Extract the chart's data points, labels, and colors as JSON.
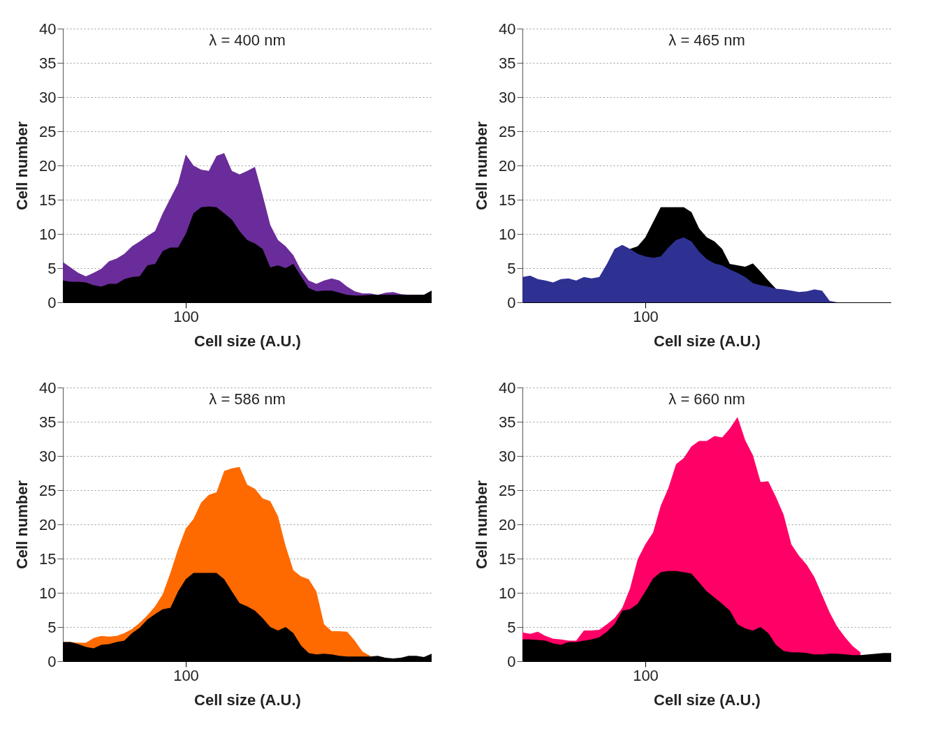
{
  "chart_data": [
    {
      "type": "area",
      "title": "λ = 400 nm",
      "xlabel": "Cell size (A.U.)",
      "ylabel": "Cell number",
      "categories": [
        null,
        null,
        null,
        null,
        null,
        null,
        null,
        null,
        null,
        null,
        null,
        null,
        null,
        null,
        null,
        null,
        "100",
        null,
        null,
        null,
        null,
        null,
        null,
        null,
        null,
        null,
        null,
        null,
        null,
        null,
        null,
        null,
        null,
        null,
        null,
        null,
        null,
        null,
        null,
        null,
        null,
        null,
        null,
        null,
        null,
        null,
        null,
        null,
        null
      ],
      "ylim": [
        0,
        40
      ],
      "yticks": [
        0,
        5,
        10,
        15,
        20,
        25,
        30,
        35,
        40
      ],
      "grid": "y",
      "series": [
        {
          "color": "#6a2c9a",
          "values": [
            5.9,
            5.1,
            4.3,
            3.8,
            4.3,
            4.9,
            6.0,
            6.4,
            7.1,
            8.2,
            8.9,
            9.7,
            10.4,
            13.0,
            15.2,
            17.4,
            21.6,
            20.0,
            19.4,
            19.2,
            21.4,
            21.8,
            19.2,
            18.7,
            19.2,
            19.8,
            15.7,
            11.3,
            9.1,
            8.2,
            6.9,
            4.7,
            3.2,
            2.7,
            3.2,
            3.5,
            3.2,
            2.3,
            1.6,
            1.3,
            1.3,
            1.1,
            1.4,
            1.5,
            1.2,
            1.1,
            1.1,
            1.1,
            1.7
          ]
        },
        {
          "color": "#000000",
          "values": [
            3.2,
            3.0,
            3.0,
            2.9,
            2.5,
            2.3,
            2.7,
            2.7,
            3.4,
            3.7,
            3.8,
            5.4,
            5.6,
            7.5,
            8.0,
            8.0,
            10.0,
            13.0,
            13.9,
            14.0,
            13.9,
            13.0,
            12.1,
            10.4,
            9.1,
            8.6,
            7.8,
            5.1,
            5.4,
            5.0,
            5.6,
            3.8,
            2.1,
            1.6,
            1.7,
            1.7,
            1.4,
            1.1,
            1.0,
            1.0,
            1.1,
            1.1,
            1.1,
            1.1,
            1.1,
            1.1,
            1.1,
            1.1,
            1.7
          ]
        }
      ]
    },
    {
      "type": "area",
      "title": "λ = 465 nm",
      "xlabel": "Cell size (A.U.)",
      "ylabel": "Cell number",
      "categories": [
        null,
        null,
        null,
        null,
        null,
        null,
        null,
        null,
        null,
        null,
        null,
        null,
        null,
        null,
        null,
        null,
        "100",
        null,
        null,
        null,
        null,
        null,
        null,
        null,
        null,
        null,
        null,
        null,
        null,
        null,
        null,
        null,
        null,
        null,
        null,
        null,
        null,
        null,
        null,
        null,
        null,
        null,
        null,
        null,
        null,
        null,
        null,
        null,
        null
      ],
      "ylim": [
        0,
        40
      ],
      "yticks": [
        0,
        5,
        10,
        15,
        20,
        25,
        30,
        35,
        40
      ],
      "grid": "y",
      "series": [
        {
          "color": "#000000",
          "values": [
            null,
            null,
            null,
            null,
            null,
            null,
            null,
            null,
            null,
            null,
            null,
            null,
            null,
            null,
            7.8,
            8.2,
            9.5,
            11.7,
            13.9,
            13.9,
            13.9,
            13.9,
            13.2,
            10.8,
            9.5,
            8.9,
            7.8,
            5.6,
            5.4,
            5.2,
            5.7,
            4.5,
            3.2,
            2.0,
            null,
            null,
            null,
            null,
            null,
            null,
            null,
            null,
            null,
            null,
            null,
            null,
            null,
            null,
            null
          ]
        },
        {
          "color": "#2e3192",
          "values": [
            3.7,
            3.9,
            3.4,
            3.2,
            2.9,
            3.4,
            3.5,
            3.2,
            3.7,
            3.5,
            3.7,
            5.6,
            7.8,
            8.4,
            7.8,
            7.1,
            6.7,
            6.5,
            6.7,
            8.0,
            9.1,
            9.5,
            8.9,
            7.4,
            6.3,
            5.7,
            5.4,
            4.8,
            4.3,
            3.7,
            2.8,
            2.5,
            2.3,
            2.0,
            1.9,
            1.7,
            1.5,
            1.6,
            1.9,
            1.7,
            0.2,
            0,
            0,
            0,
            0,
            0,
            0,
            0,
            0
          ]
        }
      ]
    },
    {
      "type": "area",
      "title": "λ = 586 nm",
      "xlabel": "Cell size (A.U.)",
      "ylabel": "Cell number",
      "categories": [
        null,
        null,
        null,
        null,
        null,
        null,
        null,
        null,
        null,
        null,
        null,
        null,
        null,
        null,
        null,
        null,
        "100",
        null,
        null,
        null,
        null,
        null,
        null,
        null,
        null,
        null,
        null,
        null,
        null,
        null,
        null,
        null,
        null,
        null,
        null,
        null,
        null,
        null,
        null,
        null,
        null,
        null,
        null,
        null,
        null,
        null,
        null,
        null,
        null
      ],
      "ylim": [
        0,
        40
      ],
      "yticks": [
        0,
        5,
        10,
        15,
        20,
        25,
        30,
        35,
        40
      ],
      "grid": "y",
      "series": [
        {
          "color": "#ff6a00",
          "values": [
            2.8,
            2.8,
            2.7,
            2.7,
            3.4,
            3.7,
            3.6,
            3.7,
            4.1,
            4.7,
            5.6,
            6.7,
            8.0,
            9.8,
            12.9,
            16.4,
            19.4,
            20.8,
            23.2,
            24.3,
            24.7,
            27.8,
            28.2,
            28.4,
            25.8,
            25.2,
            23.8,
            23.4,
            21.2,
            16.8,
            13.3,
            12.4,
            12.0,
            10.2,
            5.4,
            4.4,
            4.4,
            4.3,
            3.0,
            1.4,
            0.8,
            null,
            null,
            null,
            null,
            null,
            null,
            null,
            null
          ]
        },
        {
          "color": "#000000",
          "values": [
            2.8,
            2.8,
            2.5,
            2.1,
            1.9,
            2.4,
            2.5,
            2.8,
            3.0,
            4.1,
            4.9,
            6.1,
            6.9,
            7.6,
            7.8,
            10.2,
            12.0,
            12.9,
            12.9,
            12.9,
            12.9,
            12.0,
            10.2,
            8.5,
            8.0,
            7.4,
            6.3,
            5.0,
            4.5,
            5.0,
            4.1,
            2.3,
            1.2,
            1.0,
            1.1,
            1.0,
            0.8,
            0.7,
            0.7,
            0.7,
            0.7,
            0.8,
            0.5,
            0.4,
            0.5,
            0.8,
            0.8,
            0.6,
            1.1
          ]
        }
      ]
    },
    {
      "type": "area",
      "title": "λ = 660 nm",
      "xlabel": "Cell size (A.U.)",
      "ylabel": "Cell number",
      "categories": [
        null,
        null,
        null,
        null,
        null,
        null,
        null,
        null,
        null,
        null,
        null,
        null,
        null,
        null,
        null,
        null,
        "100",
        null,
        null,
        null,
        null,
        null,
        null,
        null,
        null,
        null,
        null,
        null,
        null,
        null,
        null,
        null,
        null,
        null,
        null,
        null,
        null,
        null,
        null,
        null,
        null,
        null,
        null,
        null,
        null,
        null,
        null,
        null,
        null
      ],
      "ylim": [
        0,
        40
      ],
      "yticks": [
        0,
        5,
        10,
        15,
        20,
        25,
        30,
        35,
        40
      ],
      "grid": "y",
      "series": [
        {
          "color": "#ff0066",
          "values": [
            4.2,
            4.0,
            4.3,
            3.7,
            3.3,
            3.2,
            3.0,
            3.0,
            4.5,
            4.5,
            4.6,
            5.4,
            6.3,
            7.8,
            10.6,
            14.9,
            17.1,
            18.8,
            22.7,
            25.3,
            28.8,
            29.7,
            31.4,
            32.2,
            32.2,
            32.9,
            32.7,
            34.0,
            35.7,
            32.3,
            30.1,
            26.2,
            26.3,
            24.0,
            21.4,
            17.1,
            15.4,
            14.1,
            12.3,
            9.7,
            7.1,
            5.0,
            3.5,
            2.2,
            1.3,
            null,
            null,
            null,
            null
          ]
        },
        {
          "color": "#000000",
          "values": [
            3.2,
            3.2,
            3.1,
            3.0,
            2.6,
            2.4,
            2.8,
            2.8,
            3.0,
            3.2,
            3.5,
            4.3,
            5.4,
            7.4,
            7.6,
            8.4,
            10.2,
            12.1,
            13.0,
            13.2,
            13.2,
            13.0,
            12.8,
            11.5,
            10.2,
            9.3,
            8.4,
            7.4,
            5.4,
            4.8,
            4.5,
            5.0,
            4.1,
            2.4,
            1.5,
            1.3,
            1.3,
            1.2,
            1.0,
            1.0,
            1.1,
            1.1,
            1.0,
            0.9,
            0.9,
            1.0,
            1.1,
            1.2,
            1.2
          ]
        }
      ]
    }
  ]
}
